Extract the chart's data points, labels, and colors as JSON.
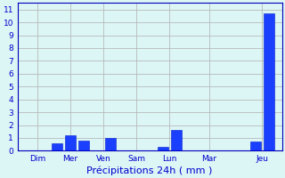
{
  "bars": [
    {
      "x": 1,
      "height": 0.0,
      "color": "#1a3fff"
    },
    {
      "x": 3,
      "height": 0.6,
      "color": "#1a3fff"
    },
    {
      "x": 4,
      "height": 1.2,
      "color": "#1a3fff"
    },
    {
      "x": 5,
      "height": 0.8,
      "color": "#1a3fff"
    },
    {
      "x": 7,
      "height": 1.0,
      "color": "#1a3fff"
    },
    {
      "x": 10,
      "height": 0.0,
      "color": "#1a3fff"
    },
    {
      "x": 11,
      "height": 0.3,
      "color": "#1a3fff"
    },
    {
      "x": 12,
      "height": 1.6,
      "color": "#1a3fff"
    },
    {
      "x": 15,
      "height": 0.0,
      "color": "#1a3fff"
    },
    {
      "x": 18,
      "height": 0.7,
      "color": "#1a3fff"
    },
    {
      "x": 19,
      "height": 10.7,
      "color": "#1a3fff"
    }
  ],
  "bar_width": 0.8,
  "n_groups": 20,
  "xtick_positions": [
    1.5,
    4.0,
    6.5,
    9.0,
    11.5,
    14.5,
    18.5
  ],
  "xticklabels": [
    "Dim",
    "Mer",
    "Ven",
    "Sam",
    "Lun",
    "Mar",
    "Jeu"
  ],
  "xlabel": "Précipitations 24h ( mm )",
  "ylim": [
    0,
    11.5
  ],
  "yticks": [
    0,
    1,
    2,
    3,
    4,
    5,
    6,
    7,
    8,
    9,
    10,
    11
  ],
  "xlim": [
    0,
    20
  ],
  "bg_color": "#dcf5f5",
  "grid_color": "#b0b0b0",
  "bar_color": "#1a3fff",
  "bar_edge_color": "#0020cc",
  "axis_color": "#0000bb",
  "xlabel_color": "#0000cc",
  "xlabel_fontsize": 8,
  "tick_fontsize": 6.5,
  "tick_color": "#0000cc",
  "vline_color": "#0000aa"
}
